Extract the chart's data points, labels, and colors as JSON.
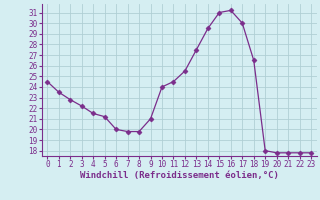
{
  "x": [
    0,
    1,
    2,
    3,
    4,
    5,
    6,
    7,
    8,
    9,
    10,
    11,
    12,
    13,
    14,
    15,
    16,
    17,
    18,
    19,
    20,
    21,
    22,
    23
  ],
  "y": [
    24.5,
    23.5,
    22.8,
    22.2,
    21.5,
    21.2,
    20.0,
    19.8,
    19.8,
    21.0,
    24.0,
    24.5,
    25.5,
    27.5,
    29.5,
    31.0,
    31.2,
    30.0,
    26.5,
    18.0,
    17.8,
    17.8,
    17.8,
    17.8
  ],
  "line_color": "#7b2d8b",
  "marker": "D",
  "marker_size": 2.5,
  "bg_color": "#d5eef2",
  "grid_color": "#b0cfd5",
  "xlabel": "Windchill (Refroidissement éolien,°C)",
  "xlim": [
    -0.5,
    23.5
  ],
  "ylim": [
    17.5,
    31.8
  ],
  "yticks": [
    18,
    19,
    20,
    21,
    22,
    23,
    24,
    25,
    26,
    27,
    28,
    29,
    30,
    31
  ],
  "xticks": [
    0,
    1,
    2,
    3,
    4,
    5,
    6,
    7,
    8,
    9,
    10,
    11,
    12,
    13,
    14,
    15,
    16,
    17,
    18,
    19,
    20,
    21,
    22,
    23
  ],
  "tick_fontsize": 5.5,
  "xlabel_fontsize": 6.5
}
